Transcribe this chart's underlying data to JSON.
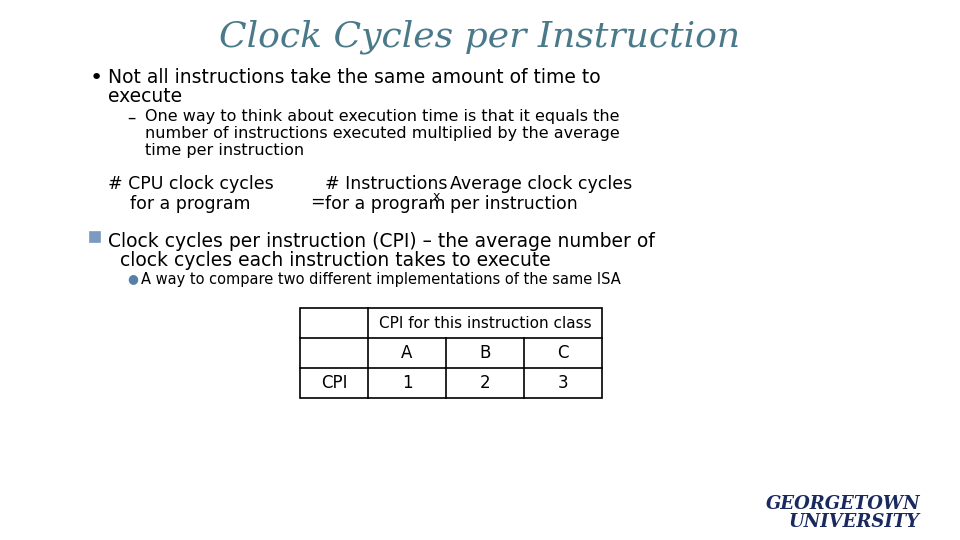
{
  "title": "Clock Cycles per Instruction",
  "title_color": "#4a7a8a",
  "title_fontsize": 26,
  "background_color": "#ffffff",
  "text_color": "#000000",
  "bullet1_line1": "Not all instructions take the same amount of time to",
  "bullet1_line2": "execute",
  "sub_bullet1_line1": "One way to think about execution time is that it equals the",
  "sub_bullet1_line2": "number of instructions executed multiplied by the average",
  "sub_bullet1_line3": "time per instruction",
  "formula_cpu_top": "# CPU clock cycles",
  "formula_cpu_bot": "    for a program",
  "formula_inst_top": "# Instructions",
  "formula_avg_top": "   Average clock cycles",
  "formula_eq": "=",
  "formula_prog": "for a program",
  "formula_sup": "x",
  "formula_per": "    per instruction",
  "cpi_bullet_line1": "Clock cycles per instruction (CPI) – the average number of",
  "cpi_bullet_line2": "  clock cycles each instruction takes to execute",
  "sub_cpi": "A way to compare two different implementations of the same ISA",
  "table_header": "CPI for this instruction class",
  "table_cols": [
    "A",
    "B",
    "C"
  ],
  "table_row_label": "CPI",
  "table_values": [
    "1",
    "2",
    "3"
  ],
  "gt_line1": "GEORGETOWN",
  "gt_line2": "UNIVERSITY",
  "gt_color": "#1a2a5e",
  "sq_bullet_color": "#7a9abf",
  "dot_bullet_color": "#5580aa"
}
